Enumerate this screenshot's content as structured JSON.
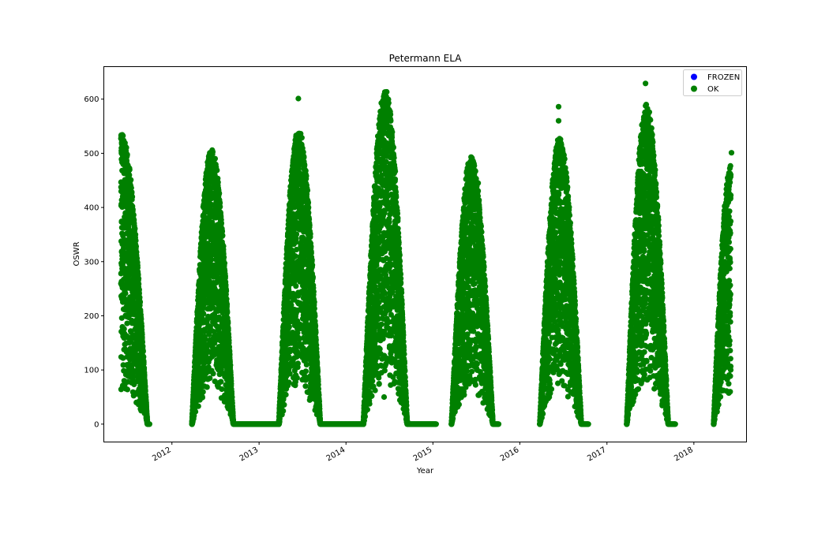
{
  "chart_data": {
    "type": "scatter",
    "title": "Petermann ELA",
    "xlabel": "Year",
    "ylabel": "OSWR",
    "xlim": [
      "2011-03-21",
      "2018-08-10"
    ],
    "ylim": [
      -33,
      660
    ],
    "x_ticks": [
      "2012",
      "2013",
      "2014",
      "2015",
      "2016",
      "2017",
      "2018"
    ],
    "y_ticks": [
      0,
      100,
      200,
      300,
      400,
      500,
      600
    ],
    "grid": false,
    "legend": {
      "placement": "top-right"
    },
    "series": [
      {
        "name": "FROZEN",
        "color": "#0000ff",
        "points": []
      },
      {
        "name": "OK",
        "color": "#008000",
        "seasons": [
          {
            "start": "2011-06-01",
            "peak": "2011-06-01",
            "end": "2011-09-20",
            "peak_value": 530
          },
          {
            "start": "2012-03-25",
            "peak": "2012-06-15",
            "end": "2012-09-15",
            "peak_value": 498
          },
          {
            "start": "2013-03-25",
            "peak": "2013-06-15",
            "end": "2013-09-15",
            "peak_value": 535
          },
          {
            "start": "2014-03-15",
            "peak": "2014-06-15",
            "end": "2014-09-15",
            "peak_value": 605
          },
          {
            "start": "2015-03-20",
            "peak": "2015-06-10",
            "end": "2015-09-10",
            "peak_value": 485
          },
          {
            "start": "2016-03-25",
            "peak": "2016-06-15",
            "end": "2016-09-15",
            "peak_value": 518
          },
          {
            "start": "2017-03-25",
            "peak": "2017-06-15",
            "end": "2017-09-15",
            "peak_value": 578
          },
          {
            "start": "2018-03-25",
            "peak": "2018-06-05",
            "end": "2018-06-05",
            "peak_value": 468
          }
        ],
        "zero_periods": [
          [
            "2011-09-20",
            "2011-09-30"
          ],
          [
            "2012-09-15",
            "2013-03-25"
          ],
          [
            "2013-09-15",
            "2014-03-15"
          ],
          [
            "2014-09-15",
            "2015-01-15"
          ],
          [
            "2015-09-10",
            "2015-10-05"
          ],
          [
            "2016-09-15",
            "2016-10-15"
          ],
          [
            "2017-09-15",
            "2017-10-15"
          ]
        ],
        "outliers": [
          [
            "2013-06-15",
            601
          ],
          [
            "2016-06-12",
            586
          ],
          [
            "2016-06-12",
            560
          ],
          [
            "2017-06-12",
            629
          ],
          [
            "2017-06-15",
            590
          ],
          [
            "2017-06-28",
            576
          ],
          [
            "2018-06-08",
            501
          ],
          [
            "2014-06-10",
            50
          ],
          [
            "2015-06-08",
            445
          ],
          [
            "2015-07-10",
            445
          ],
          [
            "2011-07-15",
            378
          ],
          [
            "2011-08-01",
            350
          ],
          [
            "2013-07-15",
            420
          ],
          [
            "2014-07-15",
            400
          ]
        ]
      }
    ]
  }
}
